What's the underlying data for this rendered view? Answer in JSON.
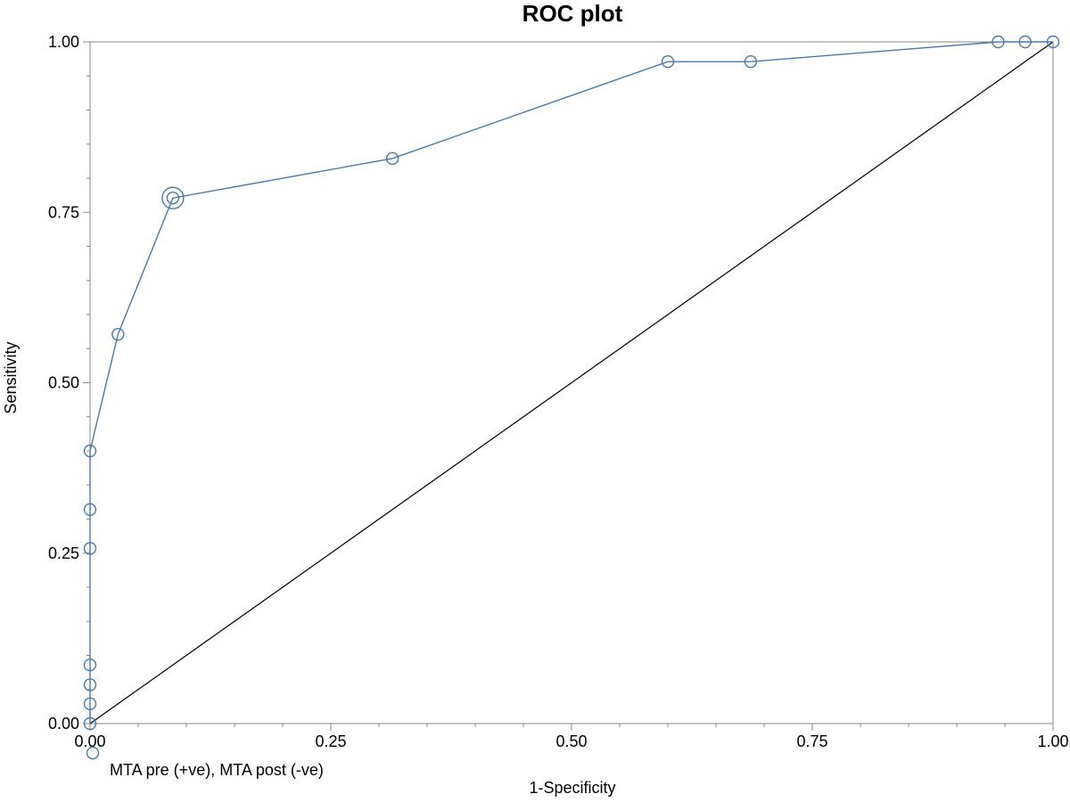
{
  "chart_data": {
    "type": "line",
    "title": "ROC plot",
    "xlabel": "1-Specificity",
    "ylabel": "Sensitivity",
    "xlim": [
      0,
      1
    ],
    "ylim": [
      0,
      1
    ],
    "x_ticks": [
      "0.00",
      "0.25",
      "0.50",
      "0.75",
      "1.00"
    ],
    "y_ticks": [
      "0.00",
      "0.25",
      "0.50",
      "0.75",
      "1.00"
    ],
    "grid": false,
    "legend_position": "bottom-left",
    "colors": {
      "series": "#4a7aa8",
      "reference": "#000000",
      "frame": "#888888"
    },
    "series": [
      {
        "name": "MTA pre (+ve), MTA post (-ve)",
        "x": [
          0,
          0,
          0,
          0,
          0,
          0,
          0,
          0.029,
          0.086,
          0.314,
          0.6,
          0.686,
          0.943,
          0.971,
          1.0
        ],
        "y": [
          0,
          0.029,
          0.057,
          0.086,
          0.257,
          0.314,
          0.4,
          0.571,
          0.771,
          0.829,
          0.971,
          0.971,
          1.0,
          1.0,
          1.0
        ]
      },
      {
        "x": [
          0,
          1
        ],
        "y": [
          0,
          1
        ]
      }
    ],
    "highlighted_point": {
      "x": 0.086,
      "y": 0.771
    }
  }
}
